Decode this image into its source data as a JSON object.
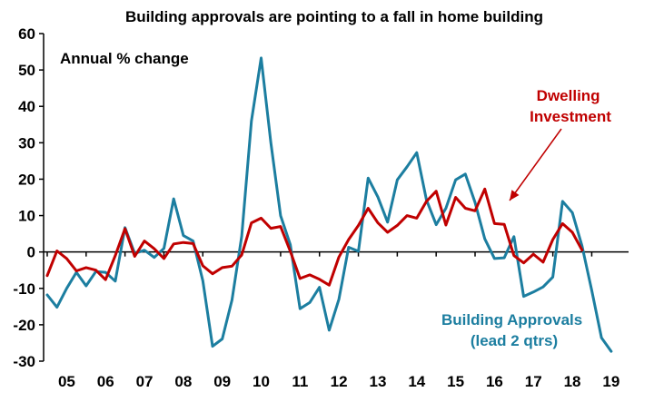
{
  "chart_data": {
    "type": "line",
    "title": "Building approvals are pointing to a fall in home building",
    "subtitle": "Annual % change",
    "ylim": [
      -30,
      60
    ],
    "yticks": [
      -30,
      -20,
      -10,
      0,
      10,
      20,
      30,
      40,
      50,
      60
    ],
    "xlim": [
      2005,
      2019.9
    ],
    "xticks": [
      2005,
      2006,
      2007,
      2008,
      2009,
      2010,
      2011,
      2012,
      2013,
      2014,
      2015,
      2016,
      2017,
      2018,
      2019
    ],
    "xtick_labels": [
      "05",
      "06",
      "07",
      "08",
      "09",
      "10",
      "11",
      "12",
      "13",
      "14",
      "15",
      "16",
      "17",
      "18",
      "19"
    ],
    "grid": false,
    "legend": "none",
    "series": [
      {
        "name": "Dwelling Investment",
        "label_lines": [
          "Dwelling",
          "Investment"
        ],
        "color": "#c00000",
        "points": [
          [
            2005.0,
            -6.5
          ],
          [
            2005.25,
            0.3
          ],
          [
            2005.5,
            -1.8
          ],
          [
            2005.75,
            -5.2
          ],
          [
            2006.0,
            -4.3
          ],
          [
            2006.25,
            -5.0
          ],
          [
            2006.5,
            -7.6
          ],
          [
            2006.75,
            -1.0
          ],
          [
            2007.0,
            6.4
          ],
          [
            2007.25,
            -1.2
          ],
          [
            2007.5,
            3.0
          ],
          [
            2007.75,
            0.9
          ],
          [
            2008.0,
            -1.8
          ],
          [
            2008.25,
            2.2
          ],
          [
            2008.5,
            2.6
          ],
          [
            2008.75,
            2.3
          ],
          [
            2009.0,
            -3.8
          ],
          [
            2009.25,
            -6.0
          ],
          [
            2009.5,
            -4.3
          ],
          [
            2009.75,
            -3.9
          ],
          [
            2010.0,
            -0.8
          ],
          [
            2010.25,
            8.0
          ],
          [
            2010.5,
            9.3
          ],
          [
            2010.75,
            6.5
          ],
          [
            2011.0,
            7.0
          ],
          [
            2011.25,
            0.2
          ],
          [
            2011.5,
            -7.3
          ],
          [
            2011.75,
            -6.3
          ],
          [
            2012.0,
            -7.5
          ],
          [
            2012.25,
            -9.1
          ],
          [
            2012.5,
            -1.4
          ],
          [
            2012.75,
            3.4
          ],
          [
            2013.0,
            7.3
          ],
          [
            2013.25,
            12.0
          ],
          [
            2013.5,
            8.0
          ],
          [
            2013.75,
            5.4
          ],
          [
            2014.0,
            7.3
          ],
          [
            2014.25,
            10.0
          ],
          [
            2014.5,
            9.3
          ],
          [
            2014.75,
            13.9
          ],
          [
            2015.0,
            16.7
          ],
          [
            2015.25,
            7.4
          ],
          [
            2015.5,
            15.0
          ],
          [
            2015.75,
            12.0
          ],
          [
            2016.0,
            11.3
          ],
          [
            2016.25,
            17.3
          ],
          [
            2016.5,
            7.8
          ],
          [
            2016.75,
            7.6
          ],
          [
            2017.0,
            -1.0
          ],
          [
            2017.25,
            -3.0
          ],
          [
            2017.5,
            -0.6
          ],
          [
            2017.75,
            -2.8
          ],
          [
            2018.0,
            3.4
          ],
          [
            2018.25,
            7.8
          ],
          [
            2018.5,
            5.4
          ],
          [
            2018.75,
            0.5
          ]
        ]
      },
      {
        "name": "Building Approvals (lead 2 qtrs)",
        "label_lines": [
          "Building Approvals",
          "(lead 2 qtrs)"
        ],
        "color": "#1c7ea0",
        "points": [
          [
            2005.0,
            -11.8
          ],
          [
            2005.25,
            -15.2
          ],
          [
            2005.5,
            -10.0
          ],
          [
            2005.75,
            -5.6
          ],
          [
            2006.0,
            -9.3
          ],
          [
            2006.25,
            -5.4
          ],
          [
            2006.5,
            -5.6
          ],
          [
            2006.75,
            -8.0
          ],
          [
            2007.0,
            6.7
          ],
          [
            2007.25,
            -0.4
          ],
          [
            2007.5,
            0.5
          ],
          [
            2007.75,
            -1.5
          ],
          [
            2008.0,
            1.0
          ],
          [
            2008.25,
            14.6
          ],
          [
            2008.5,
            4.5
          ],
          [
            2008.75,
            3.0
          ],
          [
            2009.0,
            -7.9
          ],
          [
            2009.25,
            -25.9
          ],
          [
            2009.5,
            -23.9
          ],
          [
            2009.75,
            -13.2
          ],
          [
            2010.0,
            4.3
          ],
          [
            2010.25,
            36.0
          ],
          [
            2010.5,
            53.3
          ],
          [
            2010.75,
            30.0
          ],
          [
            2011.0,
            10.0
          ],
          [
            2011.25,
            2.0
          ],
          [
            2011.5,
            -15.6
          ],
          [
            2011.75,
            -13.9
          ],
          [
            2012.0,
            -9.7
          ],
          [
            2012.25,
            -21.5
          ],
          [
            2012.5,
            -13.0
          ],
          [
            2012.75,
            1.3
          ],
          [
            2013.0,
            0.2
          ],
          [
            2013.25,
            20.3
          ],
          [
            2013.5,
            15.1
          ],
          [
            2013.75,
            8.2
          ],
          [
            2014.0,
            19.8
          ],
          [
            2014.25,
            23.4
          ],
          [
            2014.5,
            27.3
          ],
          [
            2014.75,
            14.3
          ],
          [
            2015.0,
            7.5
          ],
          [
            2015.25,
            12.0
          ],
          [
            2015.5,
            19.8
          ],
          [
            2015.75,
            21.4
          ],
          [
            2016.0,
            13.6
          ],
          [
            2016.25,
            3.6
          ],
          [
            2016.5,
            -1.8
          ],
          [
            2016.75,
            -1.6
          ],
          [
            2017.0,
            4.2
          ],
          [
            2017.25,
            -12.2
          ],
          [
            2017.5,
            -11.0
          ],
          [
            2017.75,
            -9.6
          ],
          [
            2018.0,
            -6.9
          ],
          [
            2018.25,
            13.9
          ],
          [
            2018.5,
            10.8
          ],
          [
            2018.75,
            1.6
          ],
          [
            2019.0,
            -10.6
          ],
          [
            2019.25,
            -23.6
          ],
          [
            2019.5,
            -27.3
          ]
        ]
      }
    ]
  },
  "colors": {
    "axis": "#000000",
    "arrow": "#c00000"
  }
}
